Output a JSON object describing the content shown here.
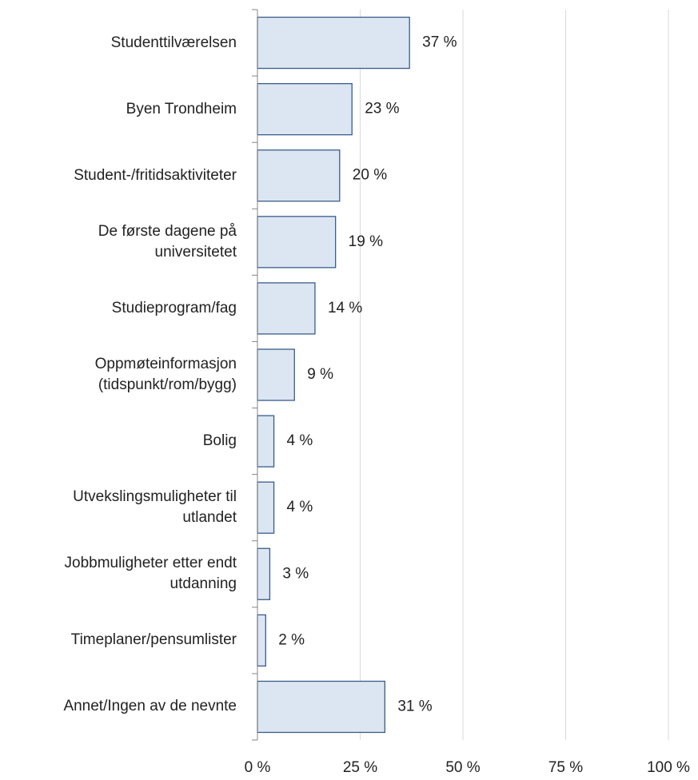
{
  "chart_data": {
    "type": "barh",
    "categories": [
      "Studenttilværelsen",
      "Byen Trondheim",
      "Student-/fritidsaktiviteter",
      "De første dagene på\nuniversitetet",
      "Studieprogram/fag",
      "Oppmøteinformasjon\n(tidspunkt/rom/bygg)",
      "Bolig",
      "Utvekslingsmuligheter til\nutlandet",
      "Jobbmuligheter etter endt\nutdanning",
      "Timeplaner/pensumlister",
      "Annet/Ingen av de nevnte"
    ],
    "values": [
      37,
      23,
      20,
      19,
      14,
      9,
      4,
      4,
      3,
      2,
      31
    ],
    "value_labels": [
      "37 %",
      "23 %",
      "20 %",
      "19 %",
      "14 %",
      "9 %",
      "4 %",
      "4 %",
      "3 %",
      "2 %",
      "31 %"
    ],
    "color": "#dce6f2",
    "edge_color": "#385d8a",
    "xlim": [
      0,
      100
    ],
    "xticks": [
      {
        "value": 0,
        "label": "0 %"
      },
      {
        "value": 25,
        "label": "25 %"
      },
      {
        "value": 50,
        "label": "50 %"
      },
      {
        "value": 75,
        "label": "75 %"
      },
      {
        "value": 100,
        "label": "100 %"
      }
    ],
    "grid": true
  }
}
